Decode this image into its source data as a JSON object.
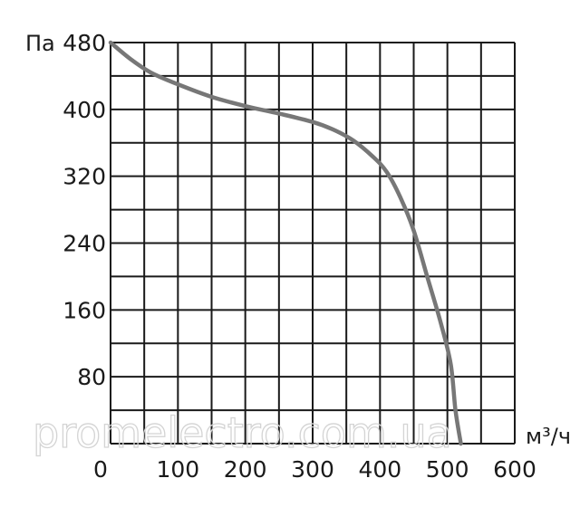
{
  "chart_data": {
    "type": "line",
    "xlabel": "м³/ч",
    "ylabel": "Па",
    "xlim": [
      0,
      600
    ],
    "ylim": [
      0,
      480
    ],
    "grid": true,
    "x_ticks": [
      "0",
      "100",
      "200",
      "300",
      "400",
      "500",
      "600"
    ],
    "y_ticks": [
      "80",
      "160",
      "240",
      "320",
      "400",
      "480"
    ],
    "series": [
      {
        "color": "#777777",
        "x": [
          0,
          30,
          60,
          100,
          150,
          200,
          250,
          300,
          330,
          360,
          390,
          410,
          430,
          450,
          470,
          490,
          505,
          512,
          520
        ],
        "y": [
          480,
          460,
          444,
          430,
          415,
          404,
          395,
          385,
          376,
          363,
          343,
          325,
          295,
          255,
          200,
          145,
          95,
          40,
          0
        ]
      }
    ]
  },
  "watermark": "promelectro.com.ua"
}
